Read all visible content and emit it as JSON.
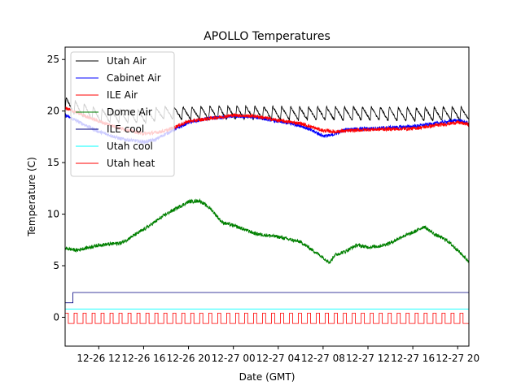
{
  "chart_data": {
    "type": "line",
    "title": "APOLLO Temperatures",
    "xlabel": "Date (GMT)",
    "ylabel": "Temperature (C)",
    "x_units": "hours since 12-26 00:00 GMT",
    "xlim": [
      9,
      45
    ],
    "ylim": [
      -2.8,
      26.2
    ],
    "xticks": [
      {
        "value": 12,
        "label": "12-26 12"
      },
      {
        "value": 16,
        "label": "12-26 16"
      },
      {
        "value": 20,
        "label": "12-26 20"
      },
      {
        "value": 24,
        "label": "12-27 00"
      },
      {
        "value": 28,
        "label": "12-27 04"
      },
      {
        "value": 32,
        "label": "12-27 08"
      },
      {
        "value": 36,
        "label": "12-27 12"
      },
      {
        "value": 40,
        "label": "12-27 16"
      },
      {
        "value": 44,
        "label": "12-27 20"
      }
    ],
    "yticks": [
      0,
      5,
      10,
      15,
      20,
      25
    ],
    "legend_position": "top-left",
    "series": [
      {
        "name": "Utah Air",
        "color": "#000000",
        "style": "sawtooth",
        "x": [
          9,
          12,
          16,
          18,
          20,
          24,
          30,
          36,
          40,
          44,
          45
        ],
        "values": [
          20.6,
          19.5,
          19.4,
          19.8,
          19.7,
          19.8,
          19.7,
          19.7,
          19.6,
          19.7,
          19.7
        ],
        "amplitude": 1.3,
        "period_hours": 0.8
      },
      {
        "name": "Cabinet Air",
        "color": "#0000ff",
        "style": "noisy",
        "x": [
          9,
          12,
          14,
          16,
          17,
          18,
          20,
          22,
          24,
          26,
          28,
          30,
          32,
          32.6,
          34,
          36,
          40,
          42,
          44,
          45
        ],
        "values": [
          19.6,
          18.0,
          17.3,
          17.0,
          17.2,
          17.8,
          18.9,
          19.3,
          19.5,
          19.4,
          19.0,
          18.6,
          17.6,
          17.6,
          18.2,
          18.3,
          18.5,
          18.8,
          19.1,
          18.8
        ]
      },
      {
        "name": "ILE Air",
        "color": "#ff0000",
        "style": "noisy",
        "x": [
          9,
          12,
          14,
          16,
          17,
          18,
          20,
          22,
          24,
          26,
          28,
          30,
          32,
          33,
          36,
          40,
          42,
          44,
          45
        ],
        "values": [
          20.3,
          19.0,
          18.3,
          17.8,
          17.9,
          18.1,
          19.0,
          19.3,
          19.6,
          19.5,
          19.1,
          18.8,
          18.1,
          18.0,
          18.2,
          18.3,
          18.6,
          18.9,
          18.7
        ]
      },
      {
        "name": "Dome Air",
        "color": "#008000",
        "style": "noisy",
        "x": [
          9,
          10,
          12,
          14,
          16,
          18,
          20,
          21,
          22,
          23,
          24,
          26,
          28,
          30,
          32,
          32.6,
          33,
          34,
          35,
          36,
          37,
          38,
          39,
          40,
          41,
          42,
          43,
          44,
          45
        ],
        "values": [
          6.7,
          6.5,
          7.0,
          7.2,
          8.5,
          10.0,
          11.2,
          11.3,
          10.5,
          9.2,
          8.9,
          8.1,
          7.8,
          7.3,
          5.8,
          5.3,
          6.0,
          6.4,
          7.0,
          6.8,
          6.9,
          7.2,
          7.8,
          8.2,
          8.8,
          8.0,
          7.5,
          6.5,
          5.4
        ]
      },
      {
        "name": "ILE cool",
        "color": "#000080",
        "style": "step",
        "x": [
          9,
          9.7,
          9.7,
          45
        ],
        "values": [
          1.4,
          1.4,
          2.4,
          2.4
        ]
      },
      {
        "name": "Utah cool",
        "color": "#00ffff",
        "style": "flat",
        "x": [
          9,
          45
        ],
        "values": [
          0.8,
          0.8
        ]
      },
      {
        "name": "Utah heat",
        "color": "#ff0000",
        "style": "pulse",
        "x": [
          9,
          45
        ],
        "low": -0.6,
        "high": 0.4,
        "period_hours": 0.8,
        "duty": 0.35
      }
    ]
  }
}
